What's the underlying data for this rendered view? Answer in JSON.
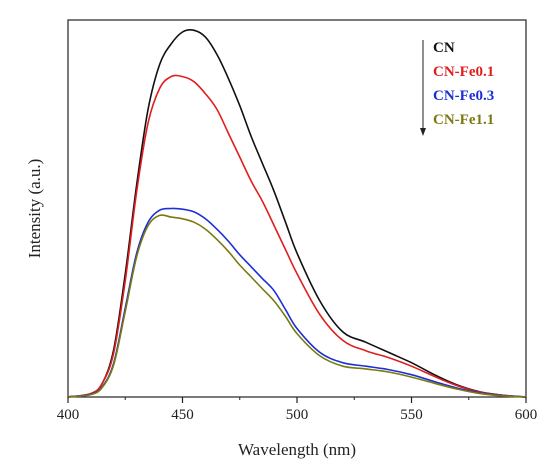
{
  "chart_data": {
    "type": "line",
    "xlabel": "Wavelength (nm)",
    "ylabel": "Intensity (a.u.)",
    "xlim": [
      400,
      600
    ],
    "ylim": [
      0,
      1.1
    ],
    "x_ticks": [
      "400",
      "450",
      "500",
      "550",
      "600"
    ],
    "y_ticks_shown": false,
    "grid": false,
    "legend_position": "top-right",
    "legend_arrow": "down",
    "series": [
      {
        "name": "CN",
        "color": "#111111",
        "x": [
          400,
          410,
          415,
          420,
          425,
          430,
          435,
          440,
          445,
          450,
          455,
          460,
          465,
          470,
          475,
          480,
          485,
          490,
          495,
          500,
          510,
          520,
          530,
          540,
          550,
          560,
          570,
          580,
          590,
          600
        ],
        "y": [
          0.0,
          0.01,
          0.04,
          0.14,
          0.36,
          0.62,
          0.84,
          0.97,
          1.03,
          1.065,
          1.07,
          1.05,
          1.0,
          0.93,
          0.85,
          0.76,
          0.68,
          0.6,
          0.51,
          0.42,
          0.28,
          0.19,
          0.16,
          0.13,
          0.1,
          0.065,
          0.035,
          0.015,
          0.005,
          0.0
        ]
      },
      {
        "name": "CN-Fe0.1",
        "color": "#e01e1e",
        "x": [
          400,
          410,
          415,
          420,
          425,
          430,
          435,
          440,
          445,
          450,
          455,
          460,
          465,
          470,
          475,
          480,
          485,
          490,
          495,
          500,
          510,
          520,
          530,
          540,
          550,
          560,
          570,
          580,
          590,
          600
        ],
        "y": [
          0.0,
          0.01,
          0.04,
          0.13,
          0.34,
          0.6,
          0.8,
          0.9,
          0.935,
          0.935,
          0.92,
          0.885,
          0.84,
          0.77,
          0.7,
          0.63,
          0.57,
          0.5,
          0.43,
          0.36,
          0.24,
          0.165,
          0.135,
          0.115,
          0.09,
          0.06,
          0.033,
          0.014,
          0.005,
          0.0
        ]
      },
      {
        "name": "CN-Fe0.3",
        "color": "#1c2fd6",
        "x": [
          400,
          410,
          415,
          420,
          425,
          430,
          435,
          440,
          445,
          450,
          455,
          460,
          465,
          470,
          475,
          480,
          485,
          490,
          495,
          500,
          510,
          520,
          530,
          540,
          550,
          560,
          570,
          580,
          590,
          600
        ],
        "y": [
          0.0,
          0.008,
          0.03,
          0.1,
          0.26,
          0.42,
          0.51,
          0.545,
          0.55,
          0.548,
          0.54,
          0.52,
          0.49,
          0.455,
          0.415,
          0.38,
          0.345,
          0.31,
          0.255,
          0.2,
          0.13,
          0.1,
          0.09,
          0.08,
          0.065,
          0.045,
          0.026,
          0.012,
          0.004,
          0.0
        ]
      },
      {
        "name": "CN-Fe1.1",
        "color": "#7a7a10",
        "x": [
          400,
          410,
          415,
          420,
          425,
          430,
          435,
          440,
          445,
          450,
          455,
          460,
          465,
          470,
          475,
          480,
          485,
          490,
          495,
          500,
          510,
          520,
          530,
          540,
          550,
          560,
          570,
          580,
          590,
          600
        ],
        "y": [
          0.0,
          0.007,
          0.028,
          0.095,
          0.25,
          0.41,
          0.5,
          0.53,
          0.525,
          0.52,
          0.51,
          0.49,
          0.46,
          0.425,
          0.385,
          0.35,
          0.315,
          0.28,
          0.235,
          0.185,
          0.12,
          0.09,
          0.082,
          0.073,
          0.058,
          0.04,
          0.023,
          0.01,
          0.003,
          0.0
        ]
      }
    ]
  }
}
